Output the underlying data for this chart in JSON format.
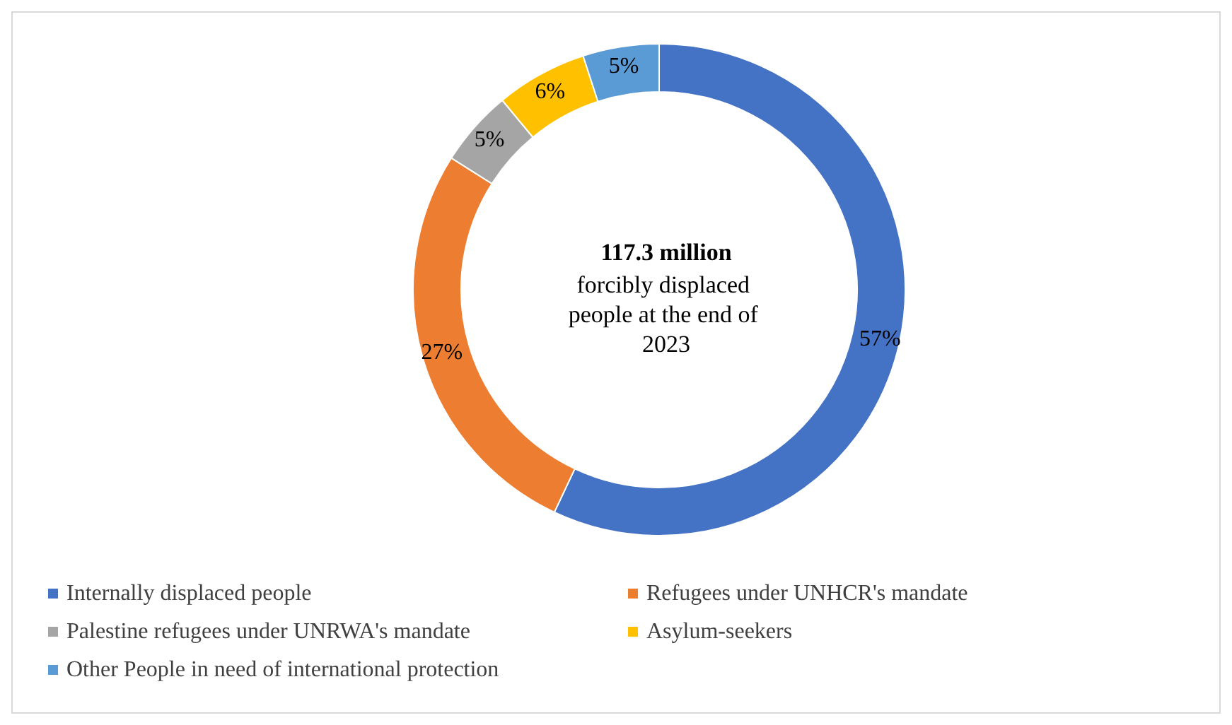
{
  "chart_data": {
    "type": "donut",
    "title": "117.3 million",
    "subtitle": "forcibly displaced people at the end of 2023",
    "categories": [
      "Internally displaced people",
      "Refugees under UNHCR's mandate",
      "Palestine refugees under UNRWA's mandate",
      "Asylum-seekers",
      "Other People in need of international protection"
    ],
    "values": [
      57,
      27,
      5,
      6,
      5
    ],
    "colors": [
      "#4472c4",
      "#ed7d31",
      "#a5a5a5",
      "#ffc000",
      "#5b9bd5"
    ],
    "value_labels": [
      "57%",
      "27%",
      "5%",
      "6%",
      "5%"
    ],
    "legend": "bottom"
  }
}
